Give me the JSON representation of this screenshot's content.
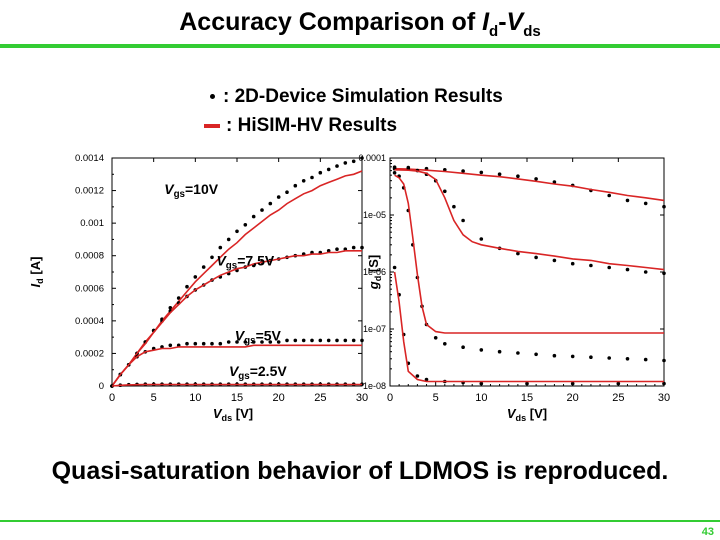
{
  "slide": {
    "title": {
      "prefix": "Accuracy Comparison of ",
      "i": "I",
      "i_sub": "d",
      "dash": "-",
      "v": "V",
      "v_sub": "ds"
    },
    "legend": {
      "simulation": ": 2D-Device Simulation Results",
      "hisim": ": HiSIM-HV Results"
    },
    "conclusion": "Quasi-saturation behavior of LDMOS is reproduced.",
    "page_number": "43"
  },
  "colors": {
    "accent": "#33cc33",
    "model_line": "#d92525",
    "sim_dot": "#000000"
  },
  "chart_data": [
    {
      "type": "line",
      "xlabel": {
        "main": "V",
        "sub": "ds",
        "unit": " [V]"
      },
      "ylabel": {
        "main": "I",
        "sub": "d",
        "unit": " [A]"
      },
      "xlim": [
        0,
        30
      ],
      "ylim": [
        0,
        0.0014
      ],
      "yscale": "linear",
      "x_ticks": [
        0,
        5,
        10,
        15,
        20,
        25,
        30
      ],
      "x_tick_labels": [
        "0",
        "5",
        "10",
        "15",
        "20",
        "25",
        "30"
      ],
      "y_ticks": [
        0,
        0.0002,
        0.0004,
        0.0006,
        0.0008,
        0.001,
        0.0012,
        0.0014
      ],
      "y_tick_labels": [
        "0",
        "0.0002",
        "0.0004",
        "0.0006",
        "0.0008",
        "0.001",
        "0.0012",
        "0.0014"
      ],
      "annotations": [
        {
          "main": "V",
          "sub": "gs",
          "value": "=10V",
          "x": 9.5,
          "y": 0.00118
        },
        {
          "main": "V",
          "sub": "gs",
          "value": "=7.5V",
          "x": 16,
          "y": 0.00074
        },
        {
          "main": "V",
          "sub": "gs",
          "value": "=5V",
          "x": 17.5,
          "y": 0.00028
        },
        {
          "main": "V",
          "sub": "gs",
          "value": "=2.5V",
          "x": 17.5,
          "y": 6e-05
        }
      ],
      "series": [
        {
          "kind": "simulation",
          "x": [
            0,
            1,
            2,
            3,
            4,
            5,
            6,
            7,
            8,
            9,
            10,
            11,
            12,
            13,
            14,
            15,
            16,
            17,
            18,
            19,
            20,
            21,
            22,
            23,
            24,
            25,
            26,
            27,
            28,
            29,
            30
          ],
          "y": [
            0,
            7e-05,
            0.00013,
            0.0002,
            0.00027,
            0.00034,
            0.00041,
            0.00048,
            0.00054,
            0.00061,
            0.00067,
            0.00073,
            0.00079,
            0.00085,
            0.0009,
            0.00095,
            0.00099,
            0.00104,
            0.00108,
            0.00112,
            0.00116,
            0.00119,
            0.00123,
            0.00126,
            0.00128,
            0.00131,
            0.00133,
            0.00135,
            0.00137,
            0.00138,
            0.0014
          ]
        },
        {
          "kind": "model",
          "x": [
            0,
            1,
            2,
            3,
            4,
            5,
            6,
            7,
            8,
            9,
            10,
            11,
            12,
            13,
            14,
            15,
            16,
            17,
            18,
            19,
            20,
            21,
            22,
            23,
            24,
            25,
            26,
            27,
            28,
            29,
            30
          ],
          "y": [
            0,
            7e-05,
            0.00013,
            0.0002,
            0.00027,
            0.00033,
            0.0004,
            0.00046,
            0.00052,
            0.00058,
            0.00064,
            0.00069,
            0.00074,
            0.00079,
            0.00084,
            0.00088,
            0.00093,
            0.00097,
            0.00101,
            0.00105,
            0.00108,
            0.00112,
            0.00115,
            0.00118,
            0.0012,
            0.00123,
            0.00125,
            0.00127,
            0.00129,
            0.0013,
            0.00132
          ]
        },
        {
          "kind": "simulation",
          "x": [
            0,
            1,
            2,
            3,
            4,
            5,
            6,
            7,
            8,
            9,
            10,
            11,
            12,
            13,
            14,
            15,
            16,
            17,
            18,
            19,
            20,
            21,
            22,
            23,
            24,
            25,
            26,
            27,
            28,
            29,
            30
          ],
          "y": [
            0,
            7e-05,
            0.00013,
            0.0002,
            0.00027,
            0.00034,
            0.0004,
            0.00046,
            0.00051,
            0.00055,
            0.00059,
            0.00062,
            0.00065,
            0.00067,
            0.00069,
            0.00071,
            0.00073,
            0.00074,
            0.00076,
            0.00077,
            0.00078,
            0.00079,
            0.0008,
            0.00081,
            0.00082,
            0.00082,
            0.00083,
            0.00084,
            0.00084,
            0.00085,
            0.00085
          ]
        },
        {
          "kind": "model",
          "x": [
            0,
            1,
            2,
            3,
            4,
            5,
            6,
            7,
            8,
            9,
            10,
            11,
            12,
            13,
            14,
            15,
            16,
            17,
            18,
            19,
            20,
            21,
            22,
            23,
            24,
            25,
            26,
            27,
            28,
            29,
            30
          ],
          "y": [
            0,
            7e-05,
            0.00013,
            0.0002,
            0.00026,
            0.00033,
            0.00039,
            0.00045,
            0.0005,
            0.00055,
            0.00059,
            0.00062,
            0.00065,
            0.00068,
            0.0007,
            0.00072,
            0.00073,
            0.00075,
            0.00076,
            0.00077,
            0.00078,
            0.00079,
            0.0008,
            0.0008,
            0.00081,
            0.00081,
            0.00082,
            0.00082,
            0.00083,
            0.00083,
            0.00083
          ]
        },
        {
          "kind": "simulation",
          "x": [
            0,
            1,
            2,
            3,
            4,
            5,
            6,
            7,
            8,
            9,
            10,
            11,
            12,
            13,
            14,
            15,
            16,
            17,
            18,
            19,
            20,
            21,
            22,
            23,
            24,
            25,
            26,
            27,
            28,
            29,
            30
          ],
          "y": [
            0,
            7e-05,
            0.00013,
            0.00018,
            0.00021,
            0.00023,
            0.00024,
            0.00025,
            0.00025,
            0.00026,
            0.00026,
            0.00026,
            0.00026,
            0.00026,
            0.00027,
            0.00027,
            0.00027,
            0.00027,
            0.00027,
            0.00027,
            0.00027,
            0.00028,
            0.00028,
            0.00028,
            0.00028,
            0.00028,
            0.00028,
            0.00028,
            0.00028,
            0.00028,
            0.00028
          ]
        },
        {
          "kind": "model",
          "x": [
            0,
            1,
            2,
            3,
            4,
            5,
            6,
            7,
            8,
            9,
            10,
            11,
            12,
            13,
            14,
            15,
            16,
            17,
            18,
            19,
            20,
            21,
            22,
            23,
            24,
            25,
            26,
            27,
            28,
            29,
            30
          ],
          "y": [
            0,
            7e-05,
            0.00013,
            0.00018,
            0.00021,
            0.00022,
            0.00023,
            0.00023,
            0.00024,
            0.00024,
            0.00024,
            0.00024,
            0.00024,
            0.00024,
            0.00024,
            0.00024,
            0.00024,
            0.00025,
            0.00025,
            0.00025,
            0.00025,
            0.00025,
            0.00025,
            0.00025,
            0.00025,
            0.00025,
            0.00025,
            0.00025,
            0.00025,
            0.00025,
            0.00025
          ]
        },
        {
          "kind": "simulation",
          "x": [
            0,
            1,
            2,
            3,
            4,
            5,
            6,
            7,
            8,
            9,
            10,
            11,
            12,
            13,
            14,
            15,
            16,
            17,
            18,
            19,
            20,
            21,
            22,
            23,
            24,
            25,
            26,
            27,
            28,
            29,
            30
          ],
          "y": [
            0,
            5e-06,
            8e-06,
            1e-05,
            1.1e-05,
            1.1e-05,
            1.1e-05,
            1.1e-05,
            1.1e-05,
            1.1e-05,
            1.1e-05,
            1.1e-05,
            1.1e-05,
            1.1e-05,
            1.1e-05,
            1.1e-05,
            1.1e-05,
            1.1e-05,
            1.1e-05,
            1.1e-05,
            1.1e-05,
            1.1e-05,
            1.1e-05,
            1.1e-05,
            1.1e-05,
            1.1e-05,
            1.1e-05,
            1.1e-05,
            1.1e-05,
            1.1e-05,
            1.1e-05
          ]
        },
        {
          "kind": "model",
          "x": [
            0,
            1,
            2,
            3,
            4,
            5,
            6,
            7,
            8,
            9,
            10,
            11,
            12,
            13,
            14,
            15,
            16,
            17,
            18,
            19,
            20,
            21,
            22,
            23,
            24,
            25,
            26,
            27,
            28,
            29,
            30
          ],
          "y": [
            0,
            4e-06,
            7e-06,
            8e-06,
            9e-06,
            9e-06,
            9e-06,
            9e-06,
            9e-06,
            9e-06,
            9e-06,
            9e-06,
            9e-06,
            9e-06,
            9e-06,
            9e-06,
            9e-06,
            9e-06,
            9e-06,
            9e-06,
            9e-06,
            9e-06,
            9e-06,
            9e-06,
            9e-06,
            9e-06,
            9e-06,
            9e-06,
            9e-06,
            9e-06,
            9e-06
          ]
        }
      ]
    },
    {
      "type": "line",
      "xlabel": {
        "main": "V",
        "sub": "ds",
        "unit": " [V]"
      },
      "ylabel": {
        "main": "g",
        "sub": "d",
        "unit": " [S]"
      },
      "xlim": [
        0,
        30
      ],
      "ylim": [
        1e-08,
        0.0001
      ],
      "yscale": "log",
      "x_ticks": [
        0,
        5,
        10,
        15,
        20,
        25,
        30
      ],
      "x_tick_labels": [
        "0",
        "5",
        "10",
        "15",
        "20",
        "25",
        "30"
      ],
      "y_ticks": [
        1e-08,
        1e-07,
        1e-06,
        1e-05,
        0.0001
      ],
      "y_tick_labels": [
        "1e-08",
        "1e-07",
        "1e-06",
        "1e-05",
        "0.0001"
      ],
      "series": [
        {
          "kind": "simulation",
          "x": [
            0.5,
            2,
            4,
            6,
            8,
            10,
            12,
            14,
            16,
            18,
            20,
            22,
            24,
            26,
            28,
            30
          ],
          "y": [
            6.9e-05,
            6.8e-05,
            6.5e-05,
            6.2e-05,
            5.9e-05,
            5.6e-05,
            5.2e-05,
            4.8e-05,
            4.3e-05,
            3.8e-05,
            3.3e-05,
            2.7e-05,
            2.2e-05,
            1.8e-05,
            1.6e-05,
            1.4e-05
          ]
        },
        {
          "kind": "model",
          "x": [
            0.5,
            2,
            4,
            6,
            8,
            10,
            12,
            14,
            16,
            18,
            20,
            22,
            24,
            26,
            28,
            30
          ],
          "y": [
            6.5e-05,
            6.4e-05,
            6.1e-05,
            5.8e-05,
            5.4e-05,
            5e-05,
            4.7e-05,
            4.3e-05,
            3.9e-05,
            3.5e-05,
            3.2e-05,
            2.8e-05,
            2.5e-05,
            2.2e-05,
            2e-05,
            1.8e-05
          ]
        },
        {
          "kind": "simulation",
          "x": [
            0.5,
            2,
            3,
            4,
            5,
            6,
            7,
            8,
            10,
            12,
            14,
            16,
            18,
            20,
            22,
            24,
            26,
            28,
            30
          ],
          "y": [
            6.5e-05,
            6.4e-05,
            6e-05,
            5.2e-05,
            4e-05,
            2.6e-05,
            1.4e-05,
            8e-06,
            3.8e-06,
            2.6e-06,
            2.1e-06,
            1.8e-06,
            1.6e-06,
            1.4e-06,
            1.3e-06,
            1.2e-06,
            1.1e-06,
            1e-06,
            9.5e-07
          ]
        },
        {
          "kind": "model",
          "x": [
            0.5,
            2,
            3,
            4,
            5,
            6,
            7,
            8,
            9,
            10,
            12,
            14,
            16,
            18,
            20,
            22,
            24,
            26,
            28,
            30
          ],
          "y": [
            6.2e-05,
            6.1e-05,
            5.9e-05,
            5.4e-05,
            4.2e-05,
            2e-05,
            8e-06,
            4.5e-06,
            3.4e-06,
            3e-06,
            2.6e-06,
            2.3e-06,
            2.1e-06,
            1.9e-06,
            1.7e-06,
            1.6e-06,
            1.4e-06,
            1.3e-06,
            1.2e-06,
            1.1e-06
          ]
        },
        {
          "kind": "simulation",
          "x": [
            0.5,
            1,
            1.5,
            2,
            2.5,
            3,
            3.5,
            4,
            5,
            6,
            8,
            10,
            12,
            14,
            16,
            18,
            20,
            22,
            24,
            26,
            28,
            30
          ],
          "y": [
            5.5e-05,
            4.8e-05,
            3e-05,
            1.2e-05,
            3e-06,
            8e-07,
            2.5e-07,
            1.2e-07,
            7e-08,
            5.5e-08,
            4.8e-08,
            4.3e-08,
            4e-08,
            3.8e-08,
            3.6e-08,
            3.4e-08,
            3.3e-08,
            3.2e-08,
            3.1e-08,
            3e-08,
            2.9e-08,
            2.8e-08
          ]
        },
        {
          "kind": "model",
          "x": [
            0.5,
            1,
            1.5,
            2,
            2.5,
            3,
            3.5,
            4,
            5,
            6,
            8,
            10,
            15,
            20,
            25,
            30
          ],
          "y": [
            5e-05,
            4.5e-05,
            3.5e-05,
            1.6e-05,
            4e-06,
            9e-07,
            2.5e-07,
            1.2e-07,
            9e-08,
            8.5e-08,
            8.5e-08,
            8.5e-08,
            8.5e-08,
            8.5e-08,
            8.5e-08,
            8.5e-08
          ]
        },
        {
          "kind": "simulation",
          "x": [
            0.5,
            1,
            1.5,
            2,
            3,
            4,
            6,
            8,
            10,
            15,
            20,
            25,
            30
          ],
          "y": [
            1.2e-06,
            4e-07,
            8e-08,
            2.5e-08,
            1.5e-08,
            1.3e-08,
            1.2e-08,
            1.15e-08,
            1.1e-08,
            1.1e-08,
            1.1e-08,
            1.1e-08,
            1.1e-08
          ]
        },
        {
          "kind": "model",
          "x": [
            0.5,
            1,
            1.5,
            2,
            3,
            4,
            6,
            8,
            10,
            15,
            20,
            25,
            30
          ],
          "y": [
            1e-06,
            3e-07,
            6e-08,
            1.8e-08,
            1.3e-08,
            1.2e-08,
            1.2e-08,
            1.2e-08,
            1.2e-08,
            1.2e-08,
            1.2e-08,
            1.2e-08,
            1.2e-08
          ]
        }
      ]
    }
  ]
}
